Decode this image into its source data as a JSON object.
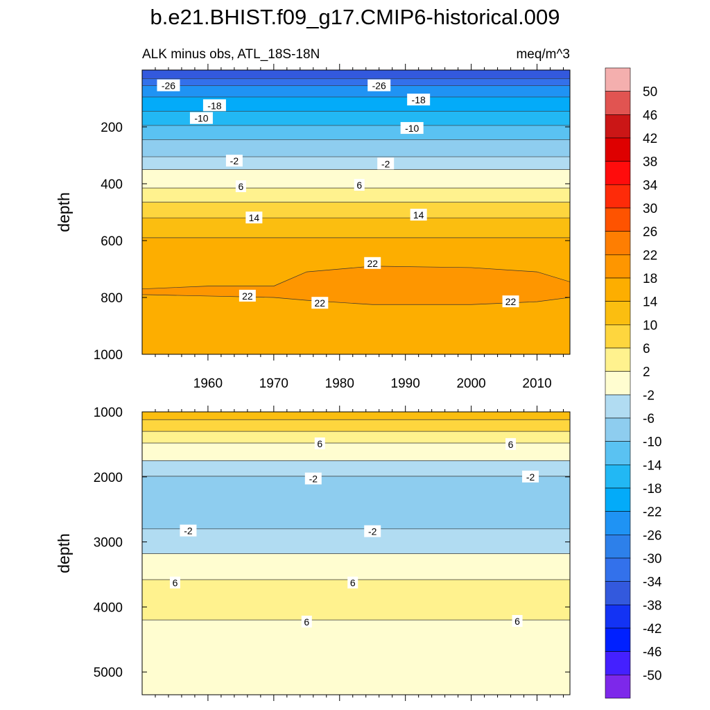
{
  "title": "b.e21.BHIST.f09_g17.CMIP6-historical.009",
  "subtitle_left": "ALK minus obs, ATL_18S-18N",
  "subtitle_right": "meq/m^3",
  "colorbar": {
    "labels": [
      "50",
      "46",
      "42",
      "38",
      "34",
      "30",
      "26",
      "22",
      "18",
      "14",
      "10",
      "6",
      "2",
      "-2",
      "-6",
      "-10",
      "-14",
      "-18",
      "-22",
      "-26",
      "-30",
      "-34",
      "-38",
      "-42",
      "-46",
      "-50"
    ],
    "colors": [
      "#f4afae",
      "#e15451",
      "#cb1616",
      "#de0000",
      "#ff0c0c",
      "#fe2b09",
      "#fe5300",
      "#fe7e02",
      "#fe9600",
      "#fdae00",
      "#fbbe10",
      "#fed63e",
      "#fff28e",
      "#fffdd0",
      "#b1dcf2",
      "#8ecdef",
      "#5ac2f2",
      "#22b8f4",
      "#03abf9",
      "#1f93f4",
      "#2d80ea",
      "#3371eb",
      "#3359dd",
      "#1333f4",
      "#0020ff",
      "#4420ff",
      "#7d28ea"
    ]
  },
  "chart_data": [
    {
      "type": "heatmap",
      "panel": "upper",
      "xlabel": "",
      "ylabel": "depth",
      "xlim": [
        1950,
        2015
      ],
      "ylim": [
        1000,
        0
      ],
      "x_ticks": [
        1960,
        1970,
        1980,
        1990,
        2000,
        2010
      ],
      "y_ticks": [
        200,
        400,
        600,
        800,
        1000
      ],
      "layers": [
        {
          "value": -34,
          "top": 0,
          "bottom": 30
        },
        {
          "value": -30,
          "top": 30,
          "bottom": 55
        },
        {
          "value": -22,
          "top": 55,
          "bottom": 95
        },
        {
          "value": -18,
          "top": 95,
          "bottom": 145
        },
        {
          "value": -14,
          "top": 145,
          "bottom": 195
        },
        {
          "value": -10,
          "top": 195,
          "bottom": 245
        },
        {
          "value": -6,
          "top": 245,
          "bottom": 305
        },
        {
          "value": -2,
          "top": 305,
          "bottom": 350
        },
        {
          "value": 2,
          "top": 350,
          "bottom": 415
        },
        {
          "value": 6,
          "top": 415,
          "bottom": 465
        },
        {
          "value": 10,
          "top": 465,
          "bottom": 520
        },
        {
          "value": 14,
          "top": 520,
          "bottom": 590
        },
        {
          "value": 18,
          "top": 590,
          "bottom": 1000
        }
      ],
      "core_region": {
        "value": 22,
        "x": [
          1950,
          1960,
          1970,
          1975,
          1985,
          2000,
          2010,
          2015
        ],
        "top": [
          770,
          760,
          760,
          710,
          690,
          695,
          710,
          745
        ],
        "bottom": [
          790,
          795,
          800,
          810,
          825,
          825,
          815,
          800
        ]
      },
      "contour_labels": [
        {
          "text": "-26",
          "x": 1954,
          "depth": 55
        },
        {
          "text": "-26",
          "x": 1986,
          "depth": 55
        },
        {
          "text": "-18",
          "x": 1961,
          "depth": 125
        },
        {
          "text": "-18",
          "x": 1992,
          "depth": 105
        },
        {
          "text": "-10",
          "x": 1959,
          "depth": 170
        },
        {
          "text": "-10",
          "x": 1991,
          "depth": 205
        },
        {
          "text": "-2",
          "x": 1964,
          "depth": 320
        },
        {
          "text": "-2",
          "x": 1987,
          "depth": 330
        },
        {
          "text": "6",
          "x": 1965,
          "depth": 410
        },
        {
          "text": "6",
          "x": 1983,
          "depth": 405
        },
        {
          "text": "14",
          "x": 1967,
          "depth": 520
        },
        {
          "text": "14",
          "x": 1992,
          "depth": 510
        },
        {
          "text": "22",
          "x": 1966,
          "depth": 795
        },
        {
          "text": "22",
          "x": 1985,
          "depth": 680
        },
        {
          "text": "22",
          "x": 1977,
          "depth": 820
        },
        {
          "text": "22",
          "x": 2006,
          "depth": 815
        }
      ]
    },
    {
      "type": "heatmap",
      "panel": "lower",
      "xlabel": "",
      "ylabel": "depth",
      "xlim": [
        1950,
        2015
      ],
      "ylim": [
        5350,
        1000
      ],
      "y_ticks": [
        1000,
        2000,
        3000,
        4000,
        5000
      ],
      "layers": [
        {
          "value": 14,
          "top": 1000,
          "bottom": 1120
        },
        {
          "value": 10,
          "top": 1120,
          "bottom": 1300
        },
        {
          "value": 6,
          "top": 1300,
          "bottom": 1480
        },
        {
          "value": 2,
          "top": 1480,
          "bottom": 1750
        },
        {
          "value": -2,
          "top": 1750,
          "bottom": 1990
        },
        {
          "value": -6,
          "top": 1990,
          "bottom": 2800
        },
        {
          "value": -2,
          "top": 2800,
          "bottom": 3180
        },
        {
          "value": 2,
          "top": 3180,
          "bottom": 3580
        },
        {
          "value": 6,
          "top": 3580,
          "bottom": 4200
        },
        {
          "value": 2,
          "top": 4200,
          "bottom": 5350
        }
      ],
      "contour_labels": [
        {
          "text": "6",
          "x": 1977,
          "depth": 1490
        },
        {
          "text": "6",
          "x": 2006,
          "depth": 1500
        },
        {
          "text": "-2",
          "x": 1976,
          "depth": 2030
        },
        {
          "text": "-2",
          "x": 2009,
          "depth": 2000
        },
        {
          "text": "-2",
          "x": 1957,
          "depth": 2830
        },
        {
          "text": "-2",
          "x": 1985,
          "depth": 2840
        },
        {
          "text": "6",
          "x": 1955,
          "depth": 3630
        },
        {
          "text": "6",
          "x": 1982,
          "depth": 3630
        },
        {
          "text": "6",
          "x": 1975,
          "depth": 4230
        },
        {
          "text": "6",
          "x": 2007,
          "depth": 4220
        }
      ]
    }
  ]
}
